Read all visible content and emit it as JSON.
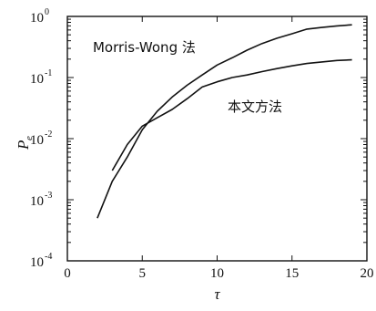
{
  "chart_data": {
    "type": "line",
    "xlabel": "τ",
    "ylabel": {
      "base": "P",
      "subscript": "e"
    },
    "xlim": [
      0,
      20
    ],
    "ylim": [
      0.0001,
      1
    ],
    "yscale": "log",
    "xticks": [
      0,
      5,
      10,
      15,
      20
    ],
    "yticks": [
      {
        "value": 0.0001,
        "base": "10",
        "exp": "-4"
      },
      {
        "value": 0.001,
        "base": "10",
        "exp": "-3"
      },
      {
        "value": 0.01,
        "base": "10",
        "exp": "-2"
      },
      {
        "value": 0.1,
        "base": "10",
        "exp": "-1"
      },
      {
        "value": 1,
        "base": "10",
        "exp": "0"
      }
    ],
    "grid": false,
    "series": [
      {
        "name": "Morris-Wong 法",
        "x": [
          2,
          3,
          4,
          5,
          6,
          7,
          8,
          9,
          10,
          11,
          12,
          13,
          14,
          15,
          16,
          17,
          18,
          19
        ],
        "y": [
          0.0005,
          0.002,
          0.005,
          0.014,
          0.028,
          0.048,
          0.075,
          0.11,
          0.16,
          0.21,
          0.28,
          0.36,
          0.44,
          0.52,
          0.62,
          0.66,
          0.7,
          0.73
        ]
      },
      {
        "name": "本文方法",
        "x": [
          3,
          4,
          5,
          6,
          7,
          8,
          9,
          10,
          11,
          12,
          13,
          14,
          15,
          16,
          17,
          18,
          19
        ],
        "y": [
          0.003,
          0.008,
          0.016,
          0.022,
          0.03,
          0.045,
          0.07,
          0.085,
          0.1,
          0.11,
          0.125,
          0.14,
          0.155,
          0.17,
          0.18,
          0.19,
          0.195
        ]
      }
    ],
    "annotations": [
      {
        "text": "Morris-Wong 法",
        "x": 1.7,
        "y": 0.26,
        "series": 0
      },
      {
        "text": "本文方法",
        "x": 10.7,
        "y": 0.028,
        "series": 1
      }
    ]
  }
}
